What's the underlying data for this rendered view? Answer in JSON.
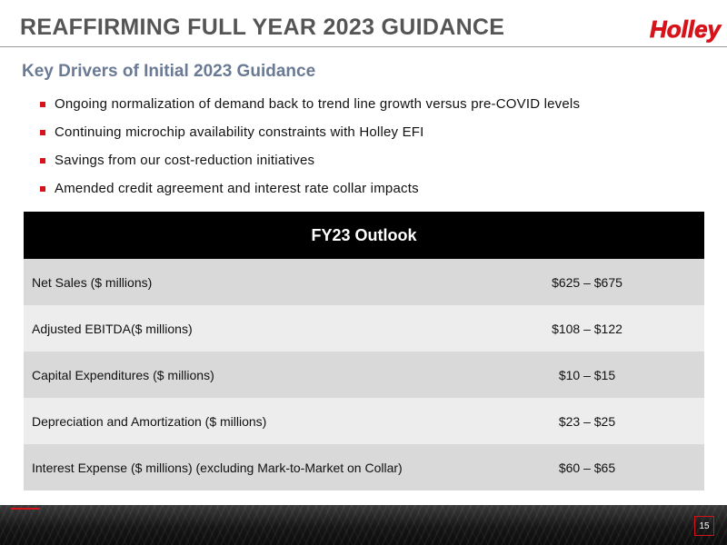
{
  "slide": {
    "title": "REAFFIRMING FULL YEAR 2023 GUIDANCE",
    "brand": "Holley",
    "subtitle": "Key Drivers of Initial 2023 Guidance",
    "bullets": [
      "Ongoing normalization  of demand  back to trend line growth versus pre-COVID  levels",
      "Continuing  microchip availability constraints with Holley EFI",
      "Savings from our cost-reduction initiatives",
      "Amended  credit agreement  and interest rate collar impacts"
    ],
    "outlook": {
      "header": "FY23 Outlook",
      "rows": [
        {
          "label": "Net Sales ($ millions)",
          "value": "$625 – $675"
        },
        {
          "label": "Adjusted EBITDA($ millions)",
          "value": "$108 – $122"
        },
        {
          "label": "Capital Expenditures ($ millions)",
          "value": "$10 – $15"
        },
        {
          "label": "Depreciation and Amortization ($ millions)",
          "value": "$23 – $25"
        },
        {
          "label": "Interest Expense ($ millions) (excluding Mark-to-Market on Collar)",
          "value": "$60 – $65"
        }
      ]
    },
    "page_number": "15"
  },
  "colors": {
    "brand_red": "#d6131a",
    "title_gray": "#555555",
    "subtitle_blue_gray": "#6a7a94"
  }
}
